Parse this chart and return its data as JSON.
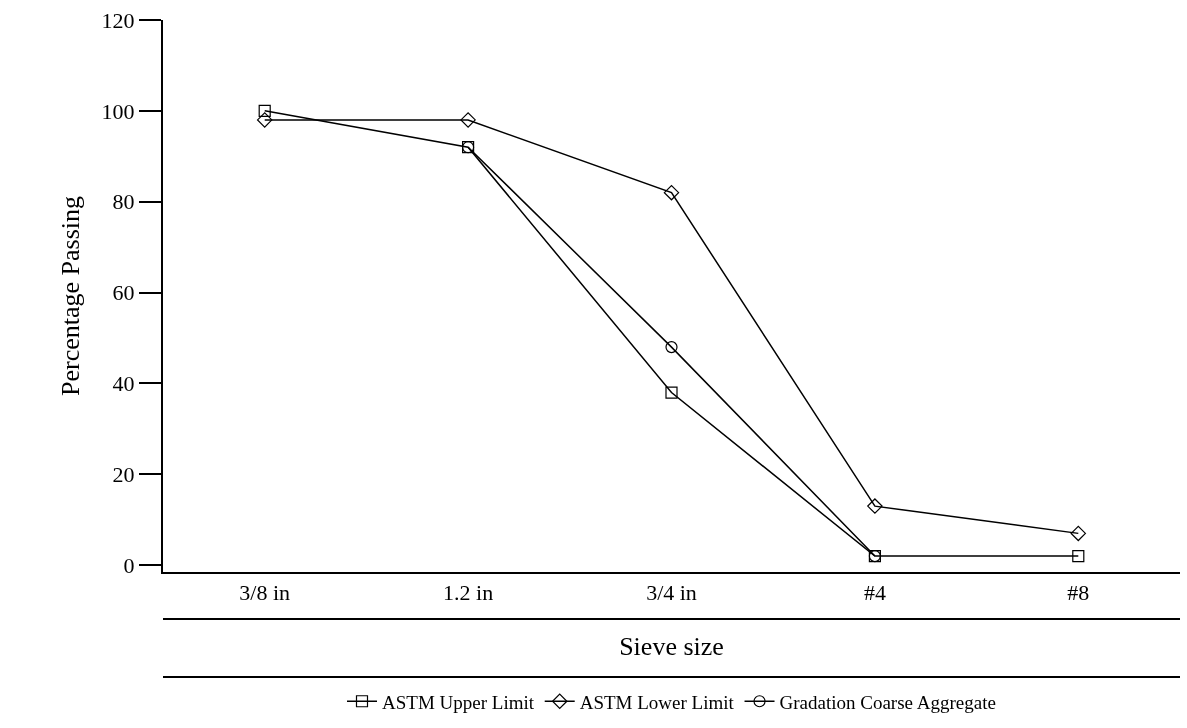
{
  "chart_data": {
    "type": "line",
    "xlabel": "Sieve size",
    "ylabel": "Percentage Passing",
    "categories": [
      "3/8 in",
      "1.2 in",
      "3/4 in",
      "#4",
      "#8"
    ],
    "series": [
      {
        "name": "ASTM Upper Limit",
        "color": "#000000",
        "marker": "square",
        "values": [
          100,
          92,
          38,
          2,
          2
        ]
      },
      {
        "name": "ASTM Lower Limit",
        "color": "#000000",
        "marker": "diamond",
        "values": [
          98,
          98,
          82,
          13,
          7
        ]
      },
      {
        "name": "Gradation Coarse Aggregate",
        "color": "#000000",
        "marker": "circle",
        "values": [
          null,
          92,
          48,
          2,
          null
        ]
      }
    ],
    "ylim": [
      -1.5,
      120
    ],
    "yticks": [
      0,
      20,
      40,
      60,
      80,
      100,
      120
    ],
    "legend": "bottom",
    "line_style": "solid"
  }
}
